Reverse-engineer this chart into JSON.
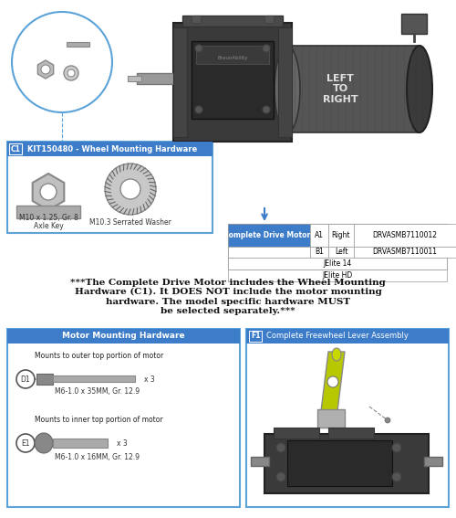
{
  "bg_color": "#ffffff",
  "blue_header": "#3d7cc9",
  "light_blue_border": "#5ba3d9",
  "c1_label": "C1",
  "c1_title": "KIT150480 - Wheel Mounting Hardware",
  "c1_items": [
    "M10 x 1.25, Gr. 8",
    "M10.3 Serrated Washer",
    "Axle Key"
  ],
  "drive_motor_label": "Complete Drive Motors",
  "drive_motor_rows": [
    [
      "A1",
      "Right",
      "DRVASMB7110012"
    ],
    [
      "B1",
      "Left",
      "DRVASMB7110011"
    ]
  ],
  "drive_motor_footer": [
    "JElite 14",
    "JElite HD"
  ],
  "warning_text": "***The Complete Drive Motor includes the Wheel Mounting\nHardware (C1). It DOES NOT include the motor mounting\nhardware. The model specific hardware MUST\nbe selected separately.***",
  "motor_hw_title": "Motor Mounting Hardware",
  "motor_hw_d1_label": "D1",
  "motor_hw_d1_desc": "Mounts to outer top portion of motor",
  "motor_hw_d1_part": "M6-1.0 x 35MM, Gr. 12.9",
  "motor_hw_d1_qty": "x 3",
  "motor_hw_e1_label": "E1",
  "motor_hw_e1_desc": "Mounts to inner top portion of motor",
  "motor_hw_e1_part": "M6-1.0 x 16MM, Gr. 12.9",
  "motor_hw_e1_qty": "x 3",
  "freewheel_label": "F1",
  "freewheel_title": "Complete Freewheel Lever Assembly"
}
